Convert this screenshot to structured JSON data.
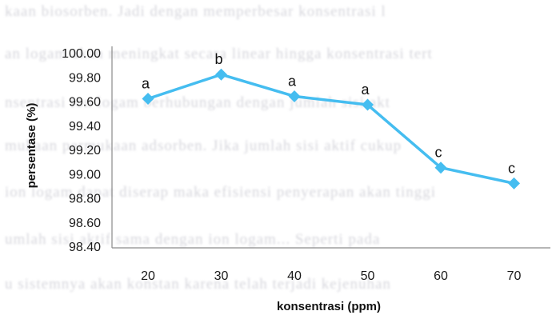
{
  "background_text": [
    "kaan biosorben. Jadi dengan memperbesar konsentrasi l",
    "an logam akan meningkat secara linear hingga konsentrasi tert",
    "nsentrasi ion logam berhubungan dengan jumlah sisi akt",
    "mukaan permukaan adsorben. Jika jumlah sisi aktif cukup",
    "ion logam dapat diserap maka efisiensi penyerapan akan tinggi",
    "umlah sisi aktif sama dengan ion logam... Seperti pada",
    "u sistemnya akan konstan karena telah terjadi kejenuhan"
  ],
  "chart_data": {
    "type": "line",
    "xlabel": "konsentrasi (ppm)",
    "ylabel": "persentase (%)",
    "categories": [
      "20",
      "30",
      "40",
      "50",
      "60",
      "70"
    ],
    "y_ticks": [
      "100.00",
      "99.80",
      "99.60",
      "99.40",
      "99.20",
      "99.00",
      "98.80",
      "98.60",
      "98.40"
    ],
    "ylim": [
      98.4,
      100.0
    ],
    "series": [
      {
        "values": [
          99.62,
          99.82,
          99.64,
          99.57,
          99.05,
          98.92
        ],
        "labels": [
          "a",
          "b",
          "a",
          "a",
          "c",
          "c"
        ],
        "color": "#45bdf0"
      }
    ],
    "grid": false,
    "axis_color": "#8a8a8a"
  }
}
